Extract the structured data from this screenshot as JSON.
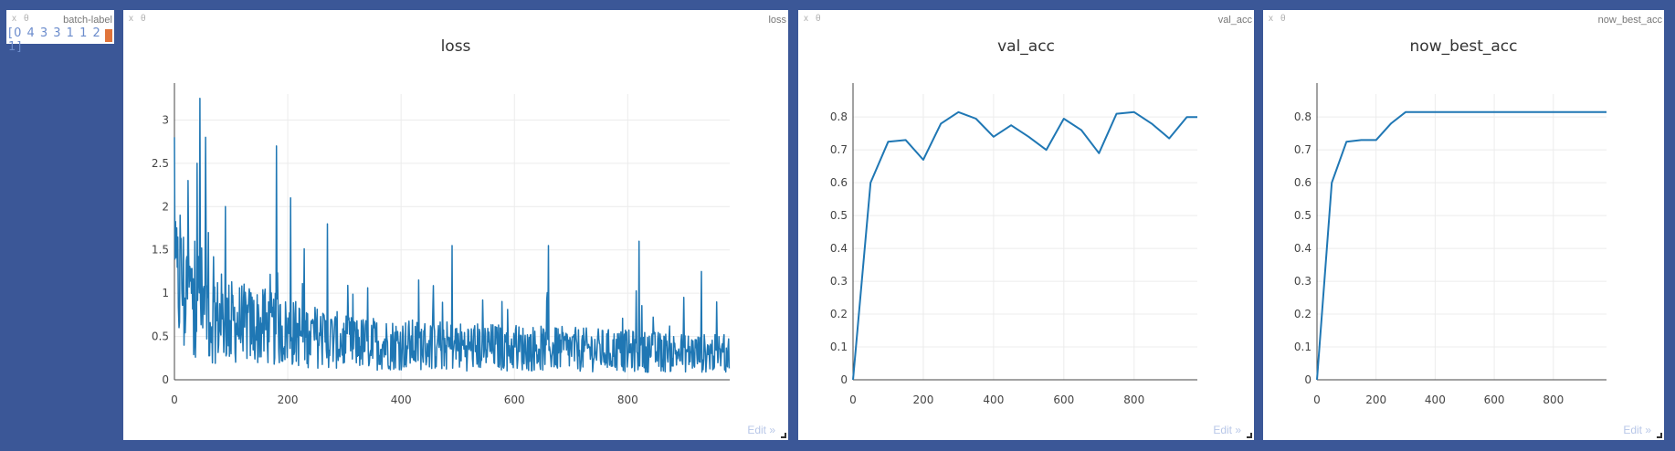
{
  "window_controls": {
    "close": "x",
    "fold": "θ"
  },
  "text_pane": {
    "name": "batch-label",
    "value": "[0 4 3 3 1 1 2 1]"
  },
  "panes": [
    {
      "name": "loss",
      "title": "loss",
      "edit_label": "Edit »"
    },
    {
      "name": "val_acc",
      "title": "val_acc",
      "edit_label": "Edit »"
    },
    {
      "name": "now_best_acc",
      "title": "now_best_acc",
      "edit_label": "Edit »"
    }
  ],
  "colors": {
    "line": "#1f77b4",
    "background": "#3b5797"
  },
  "chart_data": [
    {
      "type": "line",
      "title": "loss",
      "xlim": [
        0,
        980
      ],
      "ylim": [
        0,
        3.3
      ],
      "xticks": [
        0,
        200,
        400,
        600,
        800
      ],
      "yticks": [
        0,
        0.5,
        1,
        1.5,
        2,
        2.5,
        3
      ],
      "ytick_labels": [
        "0",
        "0.5",
        "1",
        "1.5",
        "2",
        "2.5",
        "3"
      ],
      "grid": true,
      "series": [
        {
          "x_start": 0,
          "x_step": 1,
          "count": 980,
          "values_note": "noisy decaying loss",
          "anchor_points": [
            [
              0,
              2.8
            ],
            [
              5,
              1.3
            ],
            [
              10,
              1.9
            ],
            [
              17,
              0.4
            ],
            [
              24,
              2.3
            ],
            [
              30,
              1.0
            ],
            [
              36,
              1.6
            ],
            [
              40,
              2.5
            ],
            [
              45,
              3.25
            ],
            [
              50,
              0.6
            ],
            [
              55,
              2.8
            ],
            [
              60,
              1.7
            ],
            [
              70,
              0.9
            ],
            [
              90,
              2.0
            ],
            [
              100,
              0.3
            ],
            [
              180,
              2.7
            ],
            [
              205,
              2.1
            ],
            [
              270,
              1.8
            ],
            [
              300,
              0.2
            ],
            [
              490,
              1.55
            ],
            [
              660,
              1.55
            ],
            [
              820,
              1.6
            ],
            [
              930,
              1.25
            ],
            [
              980,
              0.2
            ]
          ]
        }
      ]
    },
    {
      "type": "line",
      "title": "val_acc",
      "xlim": [
        0,
        980
      ],
      "ylim": [
        0,
        0.87
      ],
      "xticks": [
        0,
        200,
        400,
        600,
        800
      ],
      "yticks": [
        0,
        0.1,
        0.2,
        0.3,
        0.4,
        0.5,
        0.6,
        0.7,
        0.8
      ],
      "ytick_labels": [
        "0",
        "0.1",
        "0.2",
        "0.3",
        "0.4",
        "0.5",
        "0.6",
        "0.7",
        "0.8"
      ],
      "grid": true,
      "x": [
        0,
        50,
        100,
        150,
        200,
        250,
        300,
        350,
        400,
        450,
        500,
        550,
        600,
        650,
        700,
        750,
        800,
        850,
        900,
        950,
        980
      ],
      "y": [
        0,
        0.6,
        0.725,
        0.73,
        0.67,
        0.78,
        0.815,
        0.795,
        0.74,
        0.775,
        0.74,
        0.7,
        0.795,
        0.76,
        0.69,
        0.81,
        0.815,
        0.78,
        0.735,
        0.8,
        0.8
      ]
    },
    {
      "type": "line",
      "title": "now_best_acc",
      "xlim": [
        0,
        980
      ],
      "ylim": [
        0,
        0.87
      ],
      "xticks": [
        0,
        200,
        400,
        600,
        800
      ],
      "yticks": [
        0,
        0.1,
        0.2,
        0.3,
        0.4,
        0.5,
        0.6,
        0.7,
        0.8
      ],
      "ytick_labels": [
        "0",
        "0.1",
        "0.2",
        "0.3",
        "0.4",
        "0.5",
        "0.6",
        "0.7",
        "0.8"
      ],
      "grid": true,
      "x": [
        0,
        50,
        100,
        150,
        200,
        250,
        300,
        980
      ],
      "y": [
        0,
        0.6,
        0.725,
        0.73,
        0.73,
        0.78,
        0.815,
        0.815
      ]
    }
  ]
}
